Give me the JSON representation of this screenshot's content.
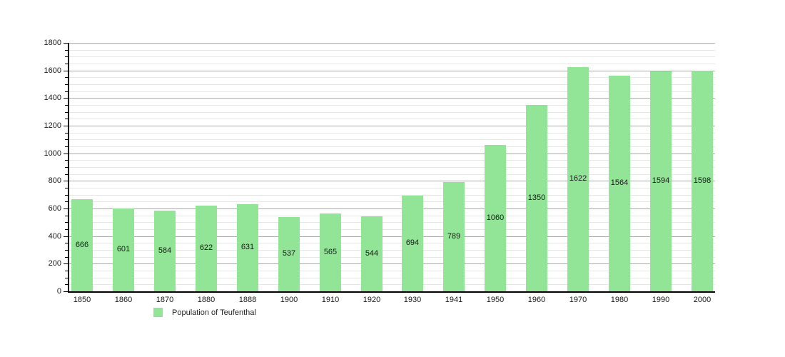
{
  "chart_data": {
    "type": "bar",
    "title": "",
    "xlabel": "",
    "ylabel": "",
    "categories": [
      "1850",
      "1860",
      "1870",
      "1880",
      "1888",
      "1900",
      "1910",
      "1920",
      "1930",
      "1941",
      "1950",
      "1960",
      "1970",
      "1980",
      "1990",
      "2000"
    ],
    "series": [
      {
        "name": "Population of Teufenthal",
        "values": [
          666,
          601,
          584,
          622,
          631,
          537,
          565,
          544,
          694,
          789,
          1060,
          1350,
          1622,
          1564,
          1594,
          1598
        ]
      }
    ],
    "ylim": [
      0,
      1800
    ],
    "y_major_step": 200,
    "y_minor_step": 50,
    "y_tick_labels": [
      "0",
      "200",
      "400",
      "600",
      "800",
      "1000",
      "1200",
      "1400",
      "1600",
      "1800"
    ],
    "grid": "on",
    "value_labels": "inside-center",
    "legend_position": "bottom-left",
    "colors": {
      "bar": "#92e497",
      "grid_major": "#aaaaaa",
      "grid_minor": "#e7e7e7",
      "axis": "#000000",
      "text": "#1a1a1a"
    }
  },
  "legend": {
    "label": "Population of Teufenthal"
  }
}
